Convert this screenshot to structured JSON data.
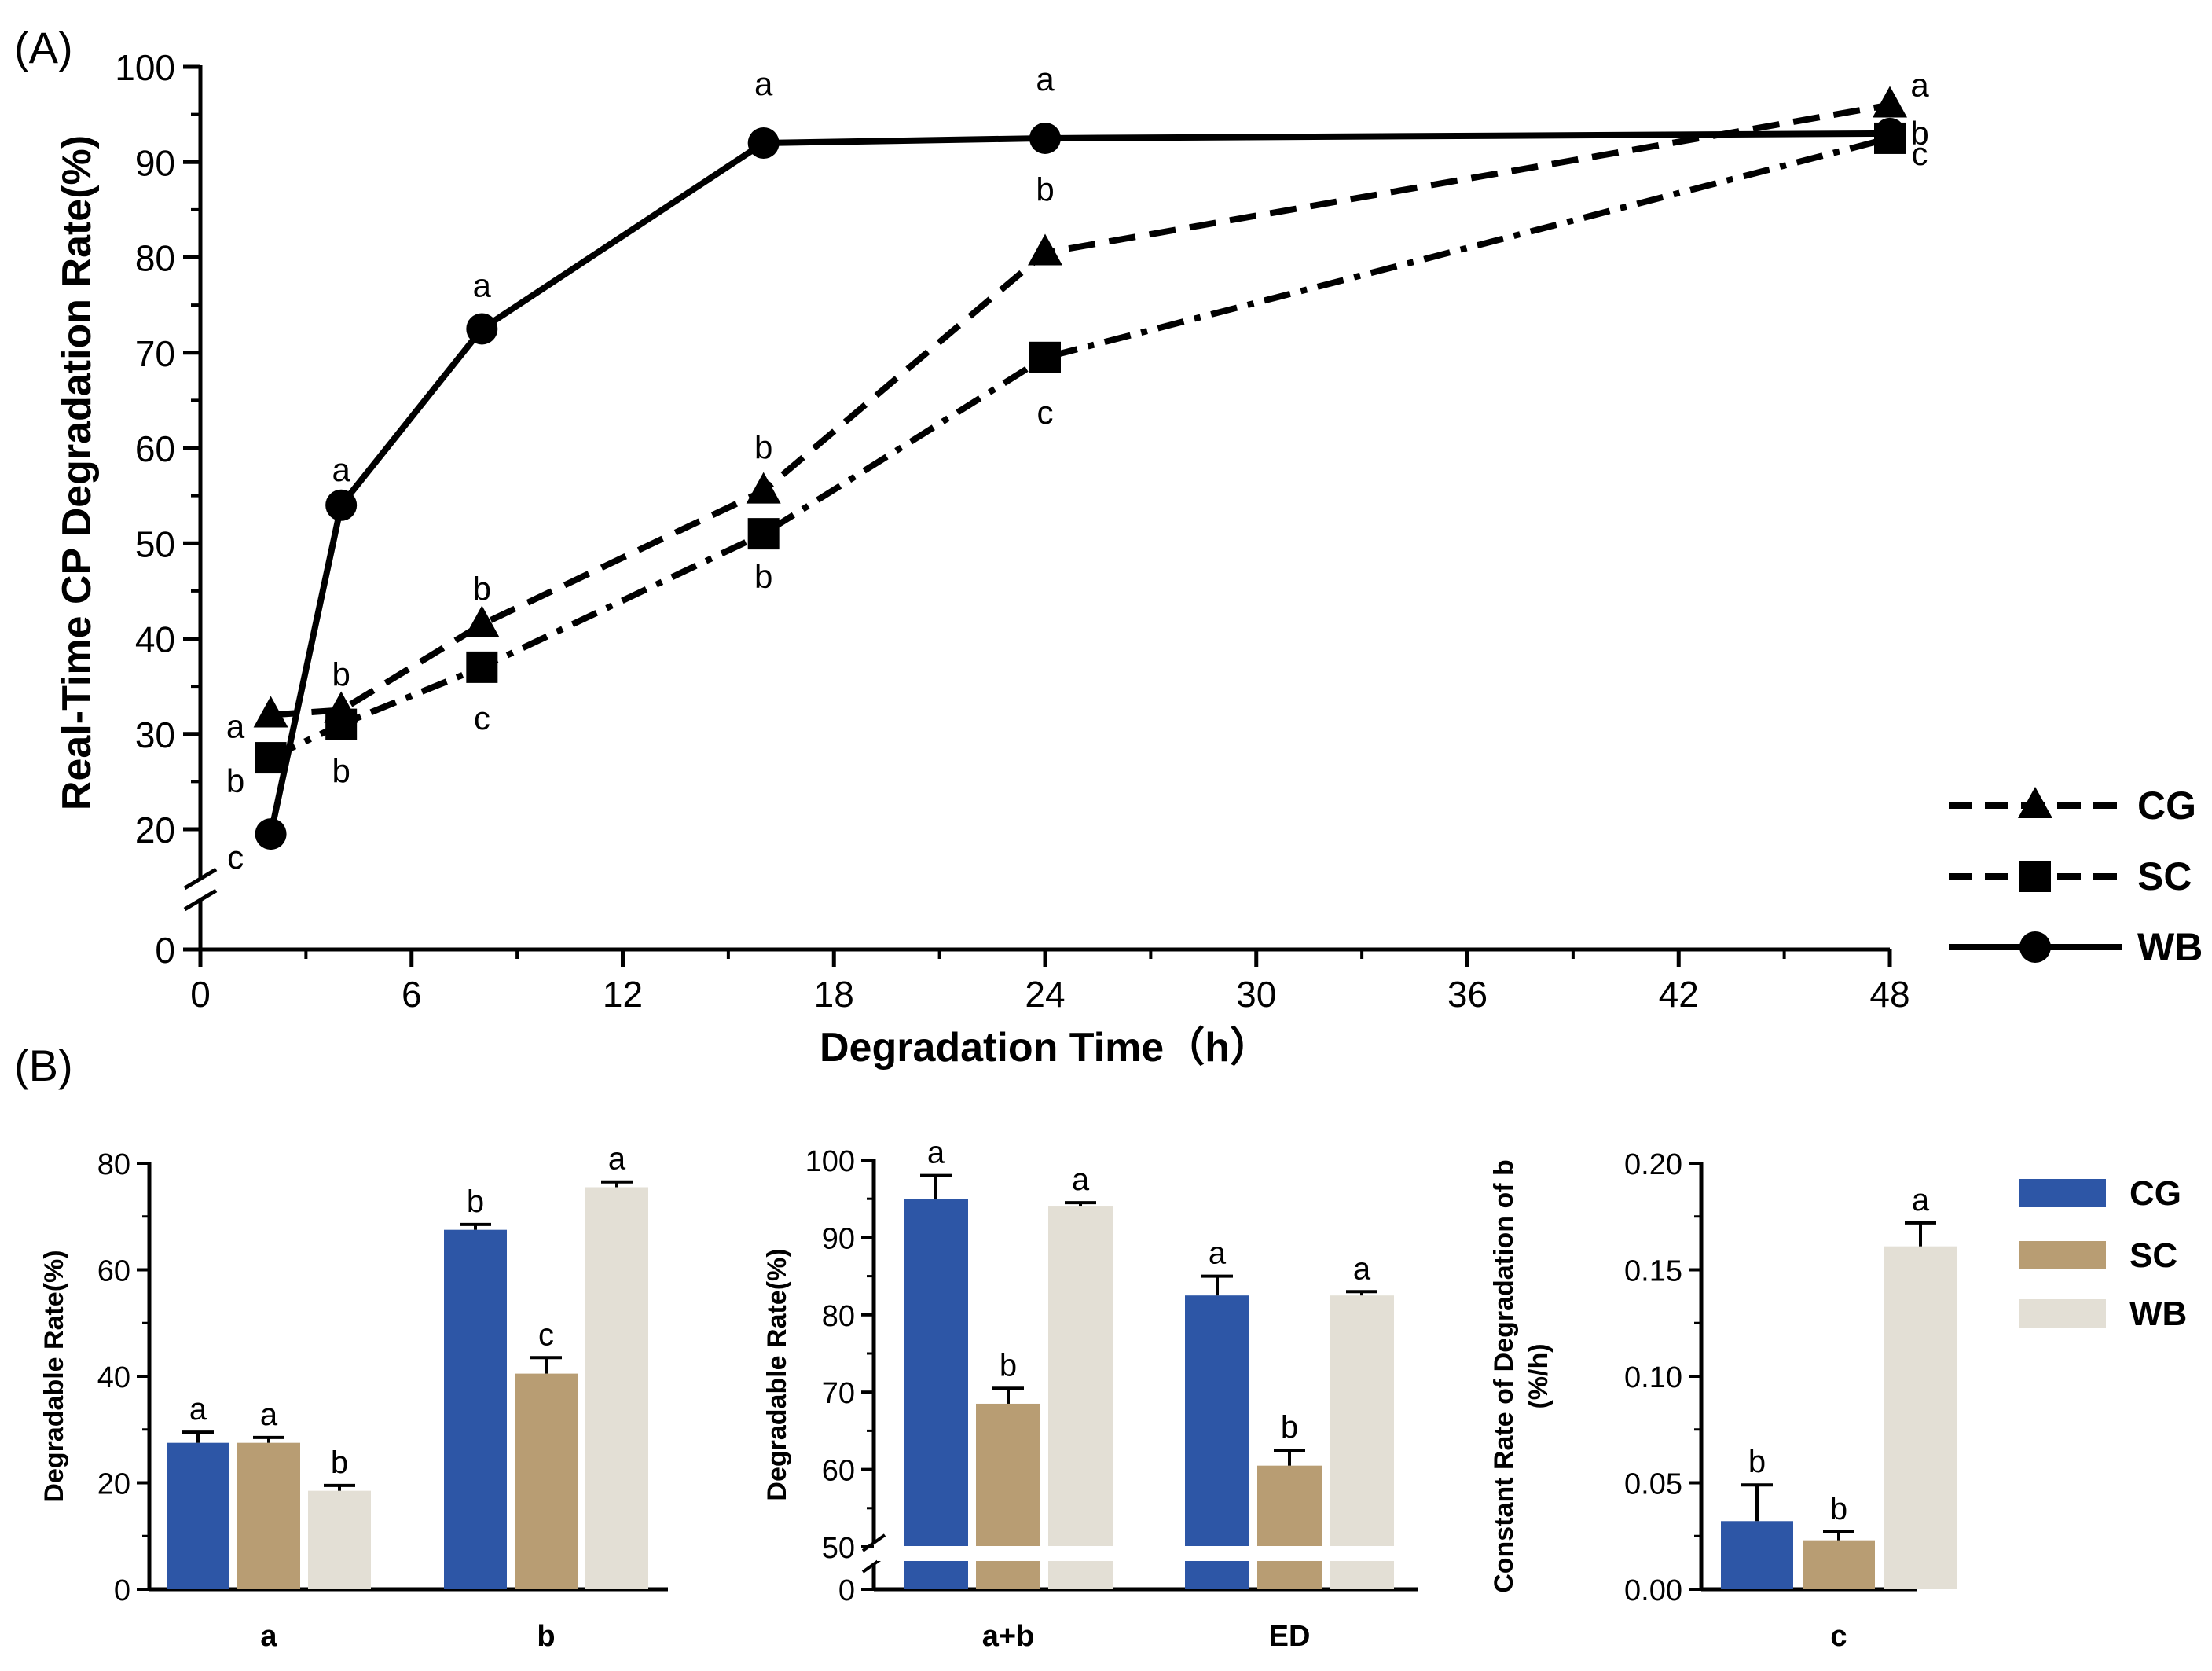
{
  "chart_data": [
    {
      "panel_label": "(A)",
      "type": "line",
      "xlabel": "Degradation Time（h）",
      "ylabel": "Real-Time CP Degradation Rate(%)",
      "xlim": [
        0,
        48
      ],
      "ylim": [
        0,
        100
      ],
      "y_axis_break": [
        0,
        20
      ],
      "x_ticks": [
        "0",
        "6",
        "12",
        "18",
        "24",
        "30",
        "36",
        "42",
        "48"
      ],
      "y_ticks": [
        "0",
        "20",
        "30",
        "40",
        "50",
        "60",
        "70",
        "80",
        "90",
        "100"
      ],
      "legend": [
        "CG",
        "SC",
        "WB"
      ],
      "series": [
        {
          "name": "CG",
          "marker": "triangle",
          "line": "dashed",
          "x": [
            2,
            4,
            8,
            16,
            24,
            48
          ],
          "values": [
            32,
            32.5,
            41.5,
            55.5,
            80.5,
            96
          ],
          "letters": [
            "a",
            "b",
            "b",
            "b",
            "b",
            "a"
          ]
        },
        {
          "name": "SC",
          "marker": "square",
          "line": "dash-dot",
          "x": [
            2,
            4,
            8,
            16,
            24,
            48
          ],
          "values": [
            27.5,
            31,
            37,
            51,
            69.5,
            92.5
          ],
          "letters": [
            "b",
            "b",
            "c",
            "b",
            "c",
            "c"
          ]
        },
        {
          "name": "WB",
          "marker": "circle",
          "line": "solid",
          "x": [
            2,
            4,
            8,
            16,
            24,
            48
          ],
          "values": [
            19.5,
            54,
            72.5,
            92,
            92.5,
            93
          ],
          "letters": [
            "c",
            "a",
            "a",
            "a",
            "a",
            "b"
          ]
        }
      ]
    },
    {
      "panel_label": "(B)",
      "type": "bar",
      "ylabel": "Degradable Rate(%)",
      "ylim": [
        0,
        80
      ],
      "y_ticks": [
        "0",
        "20",
        "40",
        "60",
        "80"
      ],
      "categories": [
        "a",
        "b"
      ],
      "series": [
        {
          "name": "CG",
          "values": [
            27.5,
            67.5
          ],
          "errors": [
            2,
            1
          ],
          "letters": [
            "a",
            "b"
          ]
        },
        {
          "name": "SC",
          "values": [
            27.5,
            40.5
          ],
          "errors": [
            1,
            3
          ],
          "letters": [
            "a",
            "c"
          ]
        },
        {
          "name": "WB",
          "values": [
            18.5,
            75.5
          ],
          "errors": [
            1,
            1
          ],
          "letters": [
            "b",
            "a"
          ]
        }
      ]
    },
    {
      "type": "bar",
      "ylabel": "Degradable Rate(%)",
      "ylim": [
        0,
        100
      ],
      "y_axis_break": [
        0,
        50
      ],
      "y_ticks": [
        "0",
        "50",
        "60",
        "70",
        "80",
        "90",
        "100"
      ],
      "categories": [
        "a+b",
        "ED"
      ],
      "series": [
        {
          "name": "CG",
          "values": [
            95,
            82.5
          ],
          "errors": [
            3,
            2.5
          ],
          "letters": [
            "a",
            "a"
          ]
        },
        {
          "name": "SC",
          "values": [
            68.5,
            60.5
          ],
          "errors": [
            2,
            2
          ],
          "letters": [
            "b",
            "b"
          ]
        },
        {
          "name": "WB",
          "values": [
            94,
            82.5
          ],
          "errors": [
            0.5,
            0.5
          ],
          "letters": [
            "a",
            "a"
          ]
        }
      ]
    },
    {
      "type": "bar",
      "ylabel": "Constant Rate of Degradation of b",
      "ylabel_sub": "(%/h)",
      "ylim": [
        0,
        0.2
      ],
      "y_ticks": [
        "0.00",
        "0.05",
        "0.10",
        "0.15",
        "0.20"
      ],
      "categories": [
        "c"
      ],
      "series": [
        {
          "name": "CG",
          "values": [
            0.032
          ],
          "errors": [
            0.017
          ],
          "letters": [
            "b"
          ]
        },
        {
          "name": "SC",
          "values": [
            0.023
          ],
          "errors": [
            0.004
          ],
          "letters": [
            "b"
          ]
        },
        {
          "name": "WB",
          "values": [
            0.161
          ],
          "errors": [
            0.011
          ],
          "letters": [
            "a"
          ]
        }
      ]
    }
  ],
  "bar_legend": [
    "CG",
    "SC",
    "WB"
  ],
  "colors": {
    "CG": "#2d56a6",
    "SC": "#b89d73",
    "WB": "#e3dfd5"
  }
}
